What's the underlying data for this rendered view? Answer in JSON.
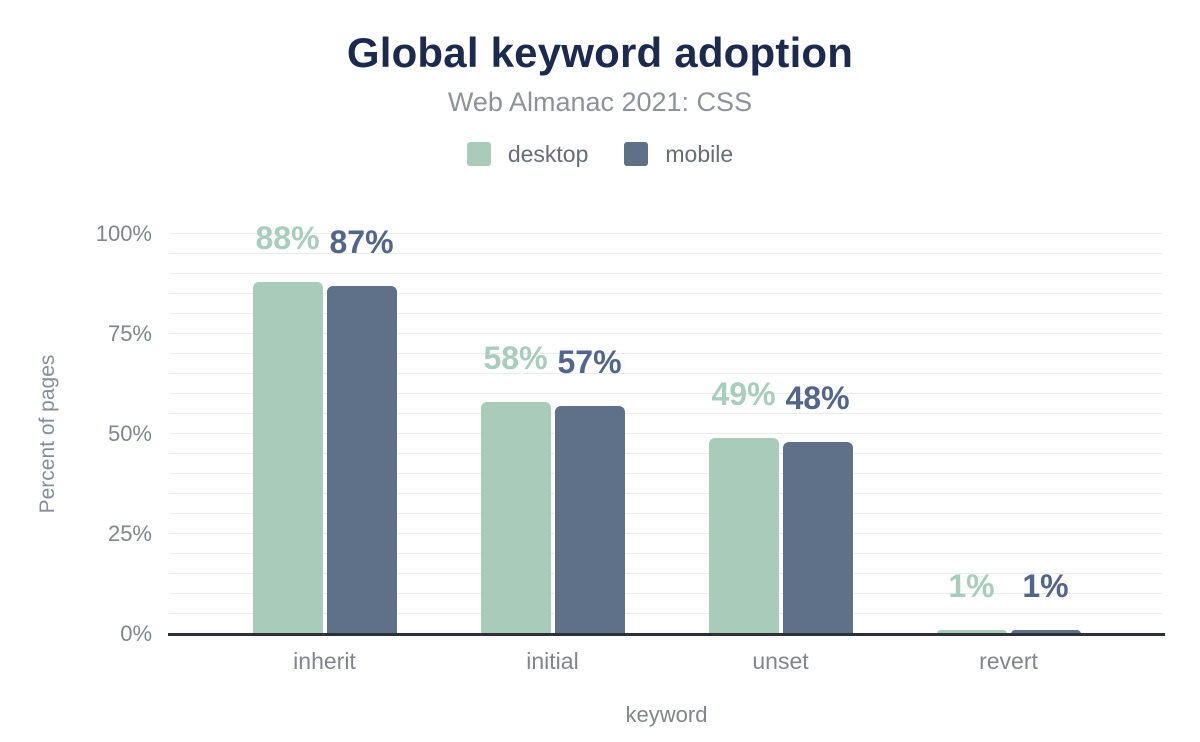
{
  "chart_data": {
    "type": "bar",
    "title": "Global keyword adoption",
    "subtitle": "Web Almanac 2021: CSS",
    "categories": [
      "inherit",
      "initial",
      "unset",
      "revert"
    ],
    "series": [
      {
        "name": "desktop",
        "color": "#a8cbba",
        "label_color": "#a9cdbc",
        "values": [
          88,
          58,
          49,
          1
        ]
      },
      {
        "name": "mobile",
        "color": "#5f7089",
        "label_color": "#536689",
        "values": [
          87,
          57,
          48,
          1
        ]
      }
    ],
    "value_suffix": "%",
    "xlabel": "keyword",
    "ylabel": "Percent of pages",
    "y_ticks": [
      "0%",
      "25%",
      "50%",
      "75%",
      "100%"
    ],
    "y_tick_values": [
      0,
      25,
      50,
      75,
      100
    ],
    "ylim": [
      0,
      100
    ],
    "grid_step": 5,
    "grid": true,
    "legend_position": "top"
  },
  "colors": {
    "title": "#1c2a4e",
    "subtitle": "#8d939c",
    "legend_text": "#666d78",
    "gridline": "#ececec",
    "axis_line": "#2d3037",
    "tick_label": "#80858e",
    "background": "#ffffff"
  }
}
